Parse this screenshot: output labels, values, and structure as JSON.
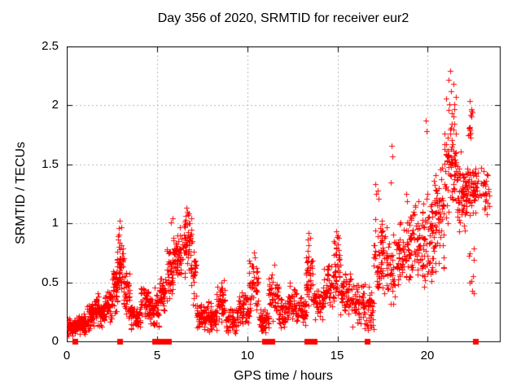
{
  "chart_data": {
    "type": "scatter",
    "title": "Day 356 of 2020, SRMTID for receiver eur2",
    "xlabel": "GPS time / hours",
    "ylabel": "SRMTID / TECUs",
    "xlim": [
      0,
      24
    ],
    "ylim": [
      0,
      2.5
    ],
    "xticks": [
      0,
      5,
      10,
      15,
      20
    ],
    "yticks": [
      0,
      0.5,
      1,
      1.5,
      2,
      2.5
    ],
    "grid": "dotted",
    "legend": false,
    "marker": "plus",
    "marker_color": "#ff0000",
    "axis_color": "#000000",
    "grid_color": "#b4b4b4",
    "background": "#ffffff",
    "seed": 1356,
    "envelope_format": "[t_start_hours, t_end_hours, y_min_TECUs, y_max_TECUs, point_count]",
    "envelope": [
      [
        0.0,
        0.5,
        0.03,
        0.2,
        60
      ],
      [
        0.5,
        1.1,
        0.05,
        0.25,
        70
      ],
      [
        1.1,
        1.5,
        0.08,
        0.33,
        50
      ],
      [
        1.5,
        1.8,
        0.13,
        0.42,
        38
      ],
      [
        1.8,
        2.1,
        0.1,
        0.32,
        40
      ],
      [
        2.1,
        2.5,
        0.16,
        0.45,
        45
      ],
      [
        2.5,
        2.8,
        0.22,
        0.65,
        40
      ],
      [
        2.8,
        3.15,
        0.35,
        1.0,
        55
      ],
      [
        3.15,
        3.5,
        0.18,
        0.6,
        40
      ],
      [
        3.5,
        4.1,
        0.1,
        0.35,
        55
      ],
      [
        4.1,
        4.6,
        0.15,
        0.5,
        50
      ],
      [
        4.6,
        5.1,
        0.1,
        0.46,
        50
      ],
      [
        5.1,
        5.5,
        0.22,
        0.6,
        40
      ],
      [
        5.5,
        5.9,
        0.32,
        0.88,
        42
      ],
      [
        5.9,
        6.4,
        0.45,
        1.0,
        55
      ],
      [
        6.4,
        6.9,
        0.5,
        1.12,
        55
      ],
      [
        6.9,
        7.2,
        0.28,
        0.95,
        30
      ],
      [
        7.2,
        7.6,
        0.1,
        0.36,
        45
      ],
      [
        7.6,
        8.3,
        0.08,
        0.35,
        70
      ],
      [
        8.3,
        8.8,
        0.15,
        0.55,
        50
      ],
      [
        8.8,
        9.5,
        0.06,
        0.3,
        60
      ],
      [
        9.5,
        10.1,
        0.1,
        0.42,
        55
      ],
      [
        10.1,
        10.6,
        0.18,
        0.74,
        45
      ],
      [
        10.6,
        11.2,
        0.06,
        0.3,
        50
      ],
      [
        11.2,
        11.75,
        0.15,
        0.64,
        45
      ],
      [
        11.75,
        12.3,
        0.08,
        0.4,
        50
      ],
      [
        12.3,
        12.75,
        0.14,
        0.5,
        40
      ],
      [
        12.75,
        13.25,
        0.1,
        0.4,
        45
      ],
      [
        13.25,
        13.65,
        0.25,
        0.9,
        45
      ],
      [
        13.65,
        14.25,
        0.15,
        0.5,
        50
      ],
      [
        14.25,
        14.8,
        0.22,
        0.7,
        45
      ],
      [
        14.8,
        15.15,
        0.35,
        0.92,
        40
      ],
      [
        15.15,
        15.8,
        0.2,
        0.6,
        55
      ],
      [
        15.8,
        16.5,
        0.1,
        0.55,
        55
      ],
      [
        16.5,
        17.0,
        0.06,
        0.5,
        45
      ],
      [
        17.0,
        17.5,
        0.25,
        1.12,
        50
      ],
      [
        17.5,
        18.2,
        0.3,
        1.0,
        55
      ],
      [
        18.2,
        19.0,
        0.35,
        1.05,
        65
      ],
      [
        19.0,
        19.7,
        0.4,
        1.25,
        60
      ],
      [
        19.7,
        20.3,
        0.4,
        1.35,
        60
      ],
      [
        20.3,
        20.9,
        0.55,
        1.55,
        65
      ],
      [
        20.9,
        21.6,
        1.0,
        2.1,
        80
      ],
      [
        21.6,
        22.1,
        0.85,
        1.65,
        60
      ],
      [
        22.1,
        22.65,
        1.05,
        1.55,
        60
      ],
      [
        22.25,
        22.5,
        1.6,
        2.05,
        12
      ],
      [
        22.3,
        22.6,
        0.25,
        0.95,
        10
      ],
      [
        22.65,
        23.45,
        1.05,
        1.5,
        35
      ]
    ],
    "outliers": [
      [
        2.95,
        1.02
      ],
      [
        3.02,
        0.97
      ],
      [
        5.78,
        1.01
      ],
      [
        5.85,
        1.04
      ],
      [
        6.62,
        1.13
      ],
      [
        6.68,
        1.1
      ],
      [
        6.74,
        1.07
      ],
      [
        10.38,
        0.75
      ],
      [
        10.44,
        0.71
      ],
      [
        11.5,
        0.65
      ],
      [
        13.42,
        0.92
      ],
      [
        13.48,
        0.88
      ],
      [
        14.95,
        0.93
      ],
      [
        15.02,
        0.9
      ],
      [
        17.1,
        1.33
      ],
      [
        17.15,
        1.25
      ],
      [
        17.22,
        1.28
      ],
      [
        17.28,
        1.21
      ],
      [
        17.95,
        1.35
      ],
      [
        18.0,
        1.66
      ],
      [
        18.06,
        1.57
      ],
      [
        18.8,
        1.25
      ],
      [
        18.84,
        1.19
      ],
      [
        19.9,
        1.87
      ],
      [
        19.95,
        1.78
      ],
      [
        21.18,
        2.22
      ],
      [
        21.24,
        2.29
      ],
      [
        21.3,
        2.12
      ],
      [
        21.45,
        2.18
      ],
      [
        22.35,
        2.04
      ],
      [
        22.4,
        1.97
      ]
    ],
    "zero_markers": [
      0.45,
      2.95,
      4.85,
      5.0,
      5.15,
      5.35,
      5.65,
      10.95,
      11.1,
      11.35,
      13.3,
      13.5,
      13.7,
      16.65,
      22.65
    ]
  }
}
